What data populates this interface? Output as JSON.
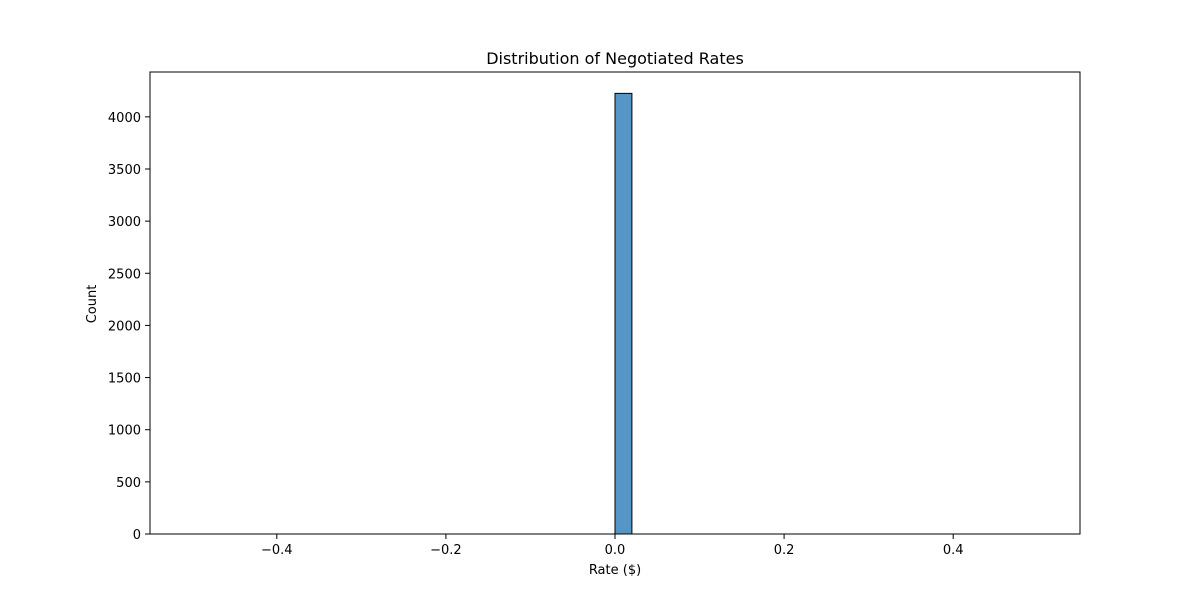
{
  "chart_data": {
    "type": "bar",
    "title": "Distribution of Negotiated Rates",
    "xlabel": "Rate ($)",
    "ylabel": "Count",
    "xlim": [
      -0.55,
      0.55
    ],
    "ylim": [
      0,
      4430
    ],
    "xticks": [
      -0.4,
      -0.2,
      0.0,
      0.2,
      0.4
    ],
    "xtick_labels": [
      "−0.4",
      "−0.2",
      "0.0",
      "0.2",
      "0.4"
    ],
    "yticks": [
      0,
      500,
      1000,
      1500,
      2000,
      2500,
      3000,
      3500,
      4000
    ],
    "ytick_labels": [
      "0",
      "500",
      "1000",
      "1500",
      "2000",
      "2500",
      "3000",
      "3500",
      "4000"
    ],
    "bins": {
      "start": -0.5,
      "end": 0.5,
      "count": 50
    },
    "bars": [
      {
        "x0": 0.0,
        "x1": 0.02,
        "count": 4225
      }
    ],
    "bar_color": "#5497c7",
    "edge_color": "#000000",
    "grid": false,
    "legend": "none"
  }
}
